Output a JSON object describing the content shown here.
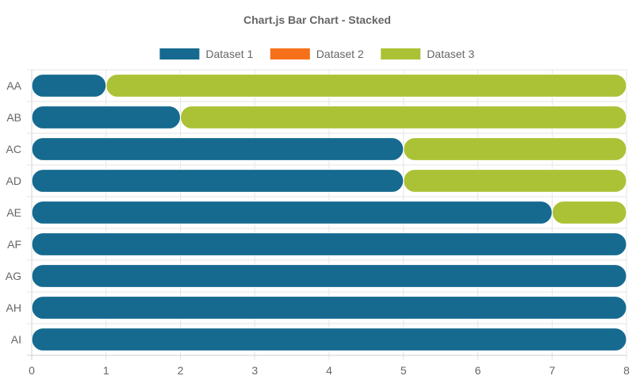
{
  "chart_data": {
    "type": "bar",
    "orientation": "horizontal",
    "stacked": true,
    "title": "Chart.js Bar Chart - Stacked",
    "categories": [
      "AA",
      "AB",
      "AC",
      "AD",
      "AE",
      "AF",
      "AG",
      "AH",
      "AI"
    ],
    "series": [
      {
        "name": "Dataset 1",
        "color": "#166a8f",
        "values": [
          1,
          2,
          5,
          5,
          7,
          8,
          8,
          8,
          8
        ]
      },
      {
        "name": "Dataset 2",
        "color": "#f67019",
        "values": [
          0,
          0,
          0,
          0,
          0,
          0,
          0,
          0,
          0
        ]
      },
      {
        "name": "Dataset 3",
        "color": "#acc236",
        "values": [
          7,
          6,
          3,
          3,
          1,
          0,
          0,
          0,
          0
        ]
      }
    ],
    "xlim": [
      0,
      8
    ],
    "x_ticks": [
      "0",
      "1",
      "2",
      "3",
      "4",
      "5",
      "6",
      "7",
      "8"
    ],
    "xlabel": "",
    "ylabel": "",
    "grid": true,
    "legend_position": "top"
  }
}
